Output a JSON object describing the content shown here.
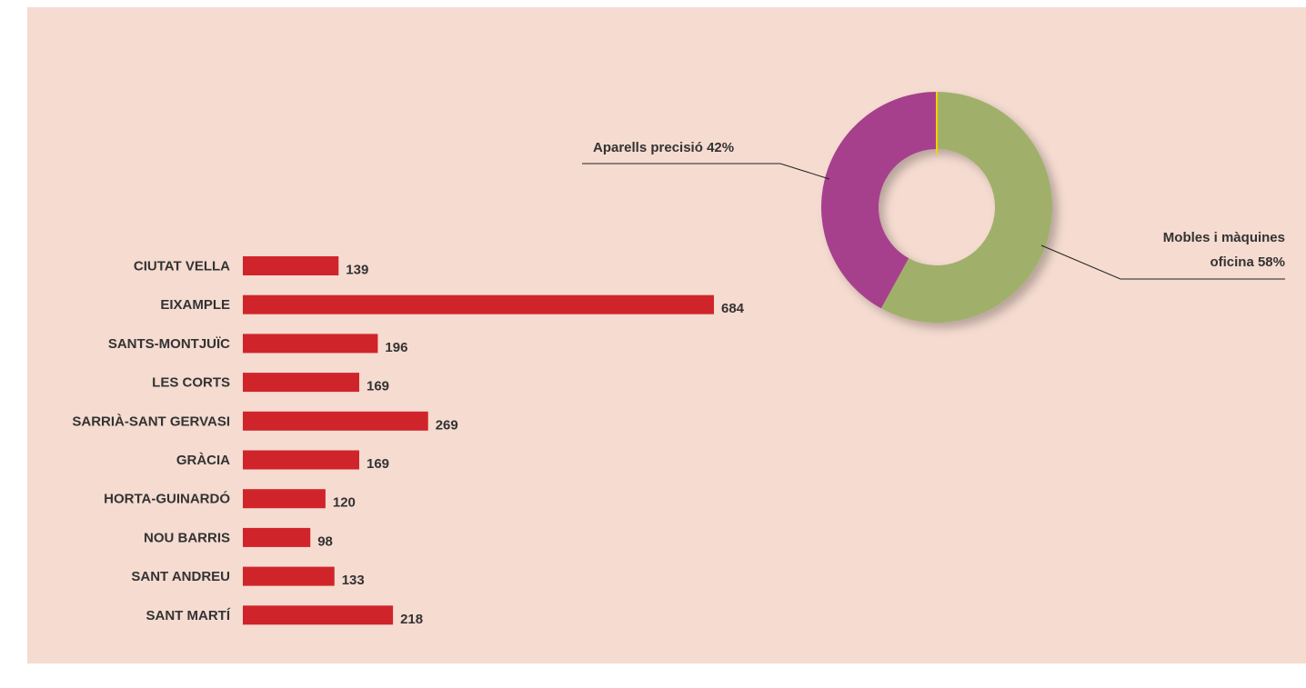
{
  "chart_data": [
    {
      "type": "barh",
      "categories": [
        "CIUTAT VELLA",
        "EIXAMPLE",
        "SANTS-MONTJUÏC",
        "LES CORTS",
        "SARRIÀ-SANT GERVASI",
        "GRÀCIA",
        "HORTA-GUINARDÓ",
        "NOU BARRIS",
        "SANT ANDREU",
        "SANT MARTÍ"
      ],
      "values": [
        139,
        684,
        196,
        169,
        269,
        169,
        120,
        98,
        133,
        218
      ],
      "color": "#d0242b"
    },
    {
      "type": "donut",
      "categories": [
        "Mobles i màquines oficina",
        "Aparells precisió"
      ],
      "values": [
        58,
        42
      ],
      "value_labels": [
        "58%",
        "42%"
      ],
      "colors": [
        "#a0b06a",
        "#a63f8c"
      ]
    }
  ]
}
